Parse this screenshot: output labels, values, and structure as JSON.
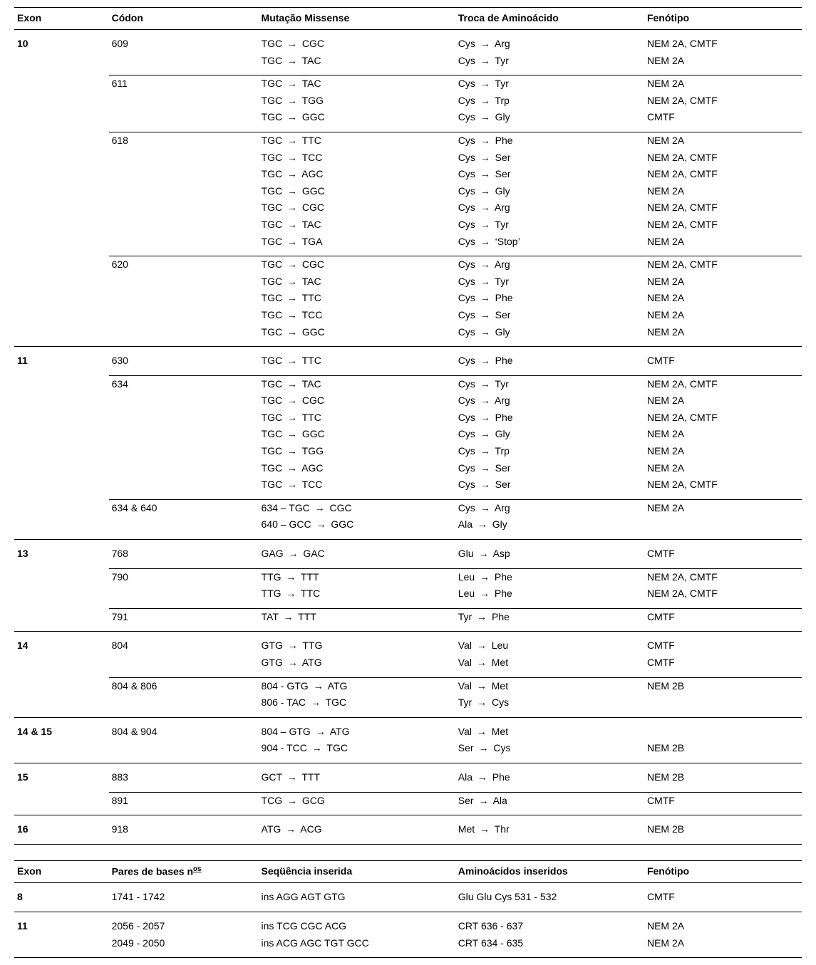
{
  "table1": {
    "headers": [
      "Exon",
      "Códon",
      "Mutação Missense",
      "Troca de Aminoácido",
      "Fenótipo"
    ],
    "exons": [
      {
        "exon": "10",
        "groups": [
          {
            "codon": "609",
            "rows": [
              {
                "m_from": "TGC",
                "m_to": "CGC",
                "a_from": "Cys",
                "a_to": "Arg",
                "p": "NEM 2A, CMTF"
              },
              {
                "m_from": "TGC",
                "m_to": "TAC",
                "a_from": "Cys",
                "a_to": "Tyr",
                "p": "NEM 2A"
              }
            ]
          },
          {
            "codon": "611",
            "rows": [
              {
                "m_from": "TGC",
                "m_to": "TAC",
                "a_from": "Cys",
                "a_to": "Tyr",
                "p": "NEM 2A"
              },
              {
                "m_from": "TGC",
                "m_to": "TGG",
                "a_from": "Cys",
                "a_to": "Trp",
                "p": "NEM 2A, CMTF"
              },
              {
                "m_from": "TGC",
                "m_to": "GGC",
                "a_from": "Cys",
                "a_to": "Gly",
                "p": "CMTF"
              }
            ]
          },
          {
            "codon": "618",
            "rows": [
              {
                "m_from": "TGC",
                "m_to": "TTC",
                "a_from": "Cys",
                "a_to": "Phe",
                "p": "NEM 2A"
              },
              {
                "m_from": "TGC",
                "m_to": "TCC",
                "a_from": "Cys",
                "a_to": "Ser",
                "p": "NEM 2A, CMTF"
              },
              {
                "m_from": "TGC",
                "m_to": "AGC",
                "a_from": "Cys",
                "a_to": "Ser",
                "p": "NEM 2A, CMTF"
              },
              {
                "m_from": "TGC",
                "m_to": "GGC",
                "a_from": "Cys",
                "a_to": "Gly",
                "p": "NEM 2A"
              },
              {
                "m_from": "TGC",
                "m_to": "CGC",
                "a_from": "Cys",
                "a_to": "Arg",
                "p": "NEM 2A, CMTF"
              },
              {
                "m_from": "TGC",
                "m_to": "TAC",
                "a_from": "Cys",
                "a_to": "Tyr",
                "p": "NEM 2A, CMTF"
              },
              {
                "m_from": "TGC",
                "m_to": "TGA",
                "a_from": "Cys",
                "a_to": "‘Stop’",
                "p": "NEM 2A"
              }
            ]
          },
          {
            "codon": "620",
            "rows": [
              {
                "m_from": "TGC",
                "m_to": "CGC",
                "a_from": "Cys",
                "a_to": "Arg",
                "p": "NEM 2A, CMTF"
              },
              {
                "m_from": "TGC",
                "m_to": "TAC",
                "a_from": "Cys",
                "a_to": "Tyr",
                "p": "NEM 2A"
              },
              {
                "m_from": "TGC",
                "m_to": "TTC",
                "a_from": "Cys",
                "a_to": "Phe",
                "p": "NEM 2A"
              },
              {
                "m_from": "TGC",
                "m_to": "TCC",
                "a_from": "Cys",
                "a_to": "Ser",
                "p": "NEM 2A"
              },
              {
                "m_from": "TGC",
                "m_to": "GGC",
                "a_from": "Cys",
                "a_to": "Gly",
                "p": "NEM 2A"
              }
            ]
          }
        ]
      },
      {
        "exon": "11",
        "groups": [
          {
            "codon": "630",
            "rows": [
              {
                "m_from": "TGC",
                "m_to": "TTC",
                "a_from": "Cys",
                "a_to": "Phe",
                "p": "CMTF"
              }
            ]
          },
          {
            "codon": "634",
            "rows": [
              {
                "m_from": "TGC",
                "m_to": "TAC",
                "a_from": "Cys",
                "a_to": "Tyr",
                "p": "NEM 2A, CMTF"
              },
              {
                "m_from": "TGC",
                "m_to": "CGC",
                "a_from": "Cys",
                "a_to": "Arg",
                "p": "NEM 2A"
              },
              {
                "m_from": "TGC",
                "m_to": "TTC",
                "a_from": "Cys",
                "a_to": "Phe",
                "p": "NEM 2A, CMTF"
              },
              {
                "m_from": "TGC",
                "m_to": "GGC",
                "a_from": "Cys",
                "a_to": "Gly",
                "p": "NEM 2A"
              },
              {
                "m_from": "TGC",
                "m_to": "TGG",
                "a_from": "Cys",
                "a_to": "Trp",
                "p": "NEM 2A"
              },
              {
                "m_from": "TGC",
                "m_to": "AGC",
                "a_from": "Cys",
                "a_to": "Ser",
                "p": "NEM 2A"
              },
              {
                "m_from": "TGC",
                "m_to": "TCC",
                "a_from": "Cys",
                "a_to": "Ser",
                "p": "NEM 2A, CMTF"
              }
            ]
          },
          {
            "codon": "634 & 640",
            "rows": [
              {
                "m_pre": "634 – ",
                "m_from": "TGC",
                "m_to": "CGC",
                "a_from": "Cys",
                "a_to": "Arg",
                "p": "NEM 2A"
              },
              {
                "m_pre": "640 – ",
                "m_from": "GCC",
                "m_to": "GGC",
                "a_from": "Ala",
                "a_to": "Gly",
                "p": ""
              }
            ]
          }
        ]
      },
      {
        "exon": "13",
        "groups": [
          {
            "codon": "768",
            "rows": [
              {
                "m_from": "GAG",
                "m_to": "GAC",
                "a_from": "Glu",
                "a_to": "Asp",
                "p": "CMTF"
              }
            ]
          },
          {
            "codon": "790",
            "rows": [
              {
                "m_from": "TTG",
                "m_to": "TTT",
                "a_from": "Leu",
                "a_to": "Phe",
                "p": "NEM 2A, CMTF"
              },
              {
                "m_from": "TTG",
                "m_to": "TTC",
                "a_from": "Leu",
                "a_to": "Phe",
                "p": "NEM 2A, CMTF"
              }
            ]
          },
          {
            "codon": "791",
            "rows": [
              {
                "m_from": "TAT",
                "m_to": "TTT",
                "a_from": "Tyr",
                "a_to": "Phe",
                "p": "CMTF"
              }
            ]
          }
        ]
      },
      {
        "exon": "14",
        "groups": [
          {
            "codon": "804",
            "rows": [
              {
                "m_from": "GTG",
                "m_to": "TTG",
                "a_from": "Val",
                "a_to": "Leu",
                "p": "CMTF"
              },
              {
                "m_from": "GTG",
                "m_to": "ATG",
                "a_from": "Val",
                "a_to": "Met",
                "p": "CMTF"
              }
            ]
          },
          {
            "codon": "804 & 806",
            "rows": [
              {
                "m_pre": "804 - ",
                "m_from": "GTG",
                "m_to": "ATG",
                "a_from": "Val",
                "a_to": "Met",
                "p": "NEM 2B"
              },
              {
                "m_pre": "806 - ",
                "m_from": "TAC",
                "m_to": "TGC",
                "a_from": "Tyr",
                "a_to": "Cys",
                "p": ""
              }
            ]
          }
        ]
      },
      {
        "exon": "14 & 15",
        "groups": [
          {
            "codon": "804 & 904",
            "rows": [
              {
                "m_pre": "804 – ",
                "m_from": "GTG",
                "m_to": "ATG",
                "a_from": "Val",
                "a_to": "Met",
                "p": ""
              },
              {
                "m_pre": "904 - ",
                "m_from": "TCC",
                "m_to": "TGC",
                "a_from": "Ser",
                "a_to": "Cys",
                "p": "NEM 2B"
              }
            ]
          }
        ]
      },
      {
        "exon": "15",
        "groups": [
          {
            "codon": "883",
            "rows": [
              {
                "m_from": "GCT",
                "m_to": "TTT",
                "a_from": "Ala",
                "a_to": "Phe",
                "p": "NEM 2B"
              }
            ]
          },
          {
            "codon": "891",
            "rows": [
              {
                "m_from": "TCG",
                "m_to": "GCG",
                "a_from": "Ser",
                "a_to": "Ala",
                "p": "CMTF"
              }
            ]
          }
        ]
      },
      {
        "exon": "16",
        "groups": [
          {
            "codon": "918",
            "rows": [
              {
                "m_from": "ATG",
                "m_to": "ACG",
                "a_from": "Met",
                "a_to": "Thr",
                "p": "NEM 2B"
              }
            ]
          }
        ]
      }
    ]
  },
  "table2": {
    "headers": [
      "Exon",
      "Pares de bases n",
      "Seqüência inserida",
      "Aminoácidos inseridos",
      "Fenótipo"
    ],
    "header2_sup": "os",
    "exons": [
      {
        "exon": "8",
        "groups": [
          {
            "codon": "1741 - 1742",
            "rows": [
              {
                "seq": "ins AGG AGT GTG",
                "aa": "Glu Glu Cys 531 - 532",
                "p": "CMTF"
              }
            ]
          }
        ]
      },
      {
        "exon": "11",
        "groups": [
          {
            "codon": "2056 - 2057",
            "rows": [
              {
                "seq": "ins TCG CGC ACG",
                "aa": "CRT 636 - 637",
                "p": "NEM 2A"
              }
            ]
          },
          {
            "codon": "2049 - 2050",
            "rows": [
              {
                "seq": "ins ACG AGC TGT GCC",
                "aa": "CRT 634 - 635",
                "p": "NEM 2A"
              }
            ]
          }
        ]
      }
    ]
  },
  "arrow": "→"
}
